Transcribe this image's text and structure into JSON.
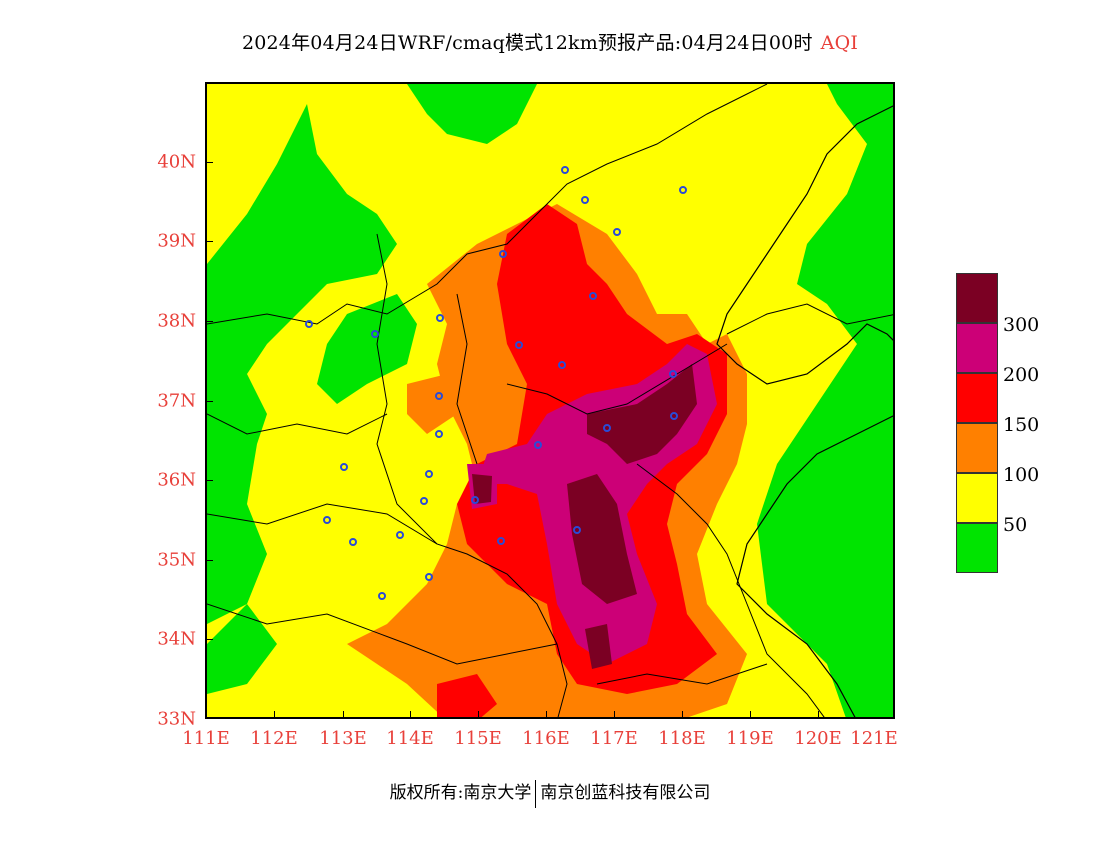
{
  "title": {
    "main": "2024年04月24日WRF/cmaq模式12km预报产品:04月24日00时",
    "product": "AQI"
  },
  "map": {
    "lat_ticks": [
      "40N",
      "39N",
      "38N",
      "37N",
      "36N",
      "35N",
      "34N",
      "33N"
    ],
    "lon_ticks": [
      "111E",
      "112E",
      "113E",
      "114E",
      "115E",
      "116E",
      "117E",
      "118E",
      "119E",
      "120E",
      "121E"
    ]
  },
  "legend": {
    "items": [
      {
        "label": "300",
        "color": "#7b0023"
      },
      {
        "label": "200",
        "color": "#cc0077"
      },
      {
        "label": "150",
        "color": "#ff0000"
      },
      {
        "label": "100",
        "color": "#ff8000"
      },
      {
        "label": "50",
        "color": "#ffff00"
      },
      {
        "label": "",
        "color": "#00e400"
      }
    ]
  },
  "footer": {
    "copyright": "版权所有:南京大学",
    "company": "南京创蓝科技有限公司"
  }
}
